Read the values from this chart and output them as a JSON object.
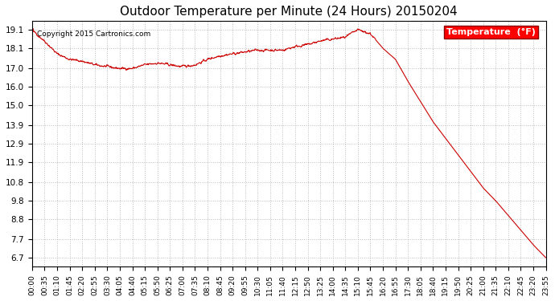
{
  "title": "Outdoor Temperature per Minute (24 Hours) 20150204",
  "copyright_text": "Copyright 2015 Cartronics.com",
  "legend_label": "Temperature  (°F)",
  "line_color": "#cc0000",
  "background_color": "#ffffff",
  "grid_color": "#aaaaaa",
  "ylim": [
    6.2,
    19.6
  ],
  "yticks": [
    6.7,
    7.7,
    8.8,
    9.8,
    10.8,
    11.9,
    12.9,
    13.9,
    15.0,
    16.0,
    17.0,
    18.1,
    19.1
  ],
  "xtick_labels": [
    "00:00",
    "00:35",
    "01:10",
    "01:45",
    "02:20",
    "02:55",
    "03:30",
    "04:05",
    "04:40",
    "05:15",
    "05:50",
    "06:25",
    "07:00",
    "07:35",
    "08:10",
    "08:45",
    "09:20",
    "09:55",
    "10:30",
    "11:05",
    "11:40",
    "12:15",
    "12:50",
    "13:25",
    "14:00",
    "14:35",
    "15:10",
    "15:45",
    "16:20",
    "16:55",
    "17:30",
    "18:05",
    "18:40",
    "19:15",
    "19:50",
    "20:25",
    "21:00",
    "21:35",
    "22:10",
    "22:45",
    "23:20",
    "23:55"
  ],
  "key_times": [
    0,
    35,
    70,
    105,
    140,
    175,
    210,
    245,
    280,
    315,
    350,
    385,
    420,
    455,
    490,
    525,
    560,
    595,
    630,
    665,
    700,
    735,
    770,
    805,
    840,
    875,
    910,
    945,
    980,
    1015,
    1050,
    1085,
    1120,
    1155,
    1190,
    1225,
    1260,
    1295,
    1330,
    1365,
    1400,
    1435
  ],
  "key_values": [
    19.1,
    18.5,
    17.8,
    17.5,
    17.4,
    17.2,
    17.1,
    17.0,
    17.0,
    17.2,
    17.3,
    17.2,
    17.1,
    17.2,
    17.5,
    17.7,
    17.8,
    17.9,
    18.0,
    18.0,
    18.0,
    18.2,
    18.3,
    18.5,
    18.6,
    18.7,
    19.1,
    18.9,
    18.1,
    17.5,
    16.3,
    15.2,
    14.1,
    13.2,
    12.3,
    11.4,
    10.5,
    9.8,
    9.0,
    8.2,
    7.4,
    6.7
  ]
}
